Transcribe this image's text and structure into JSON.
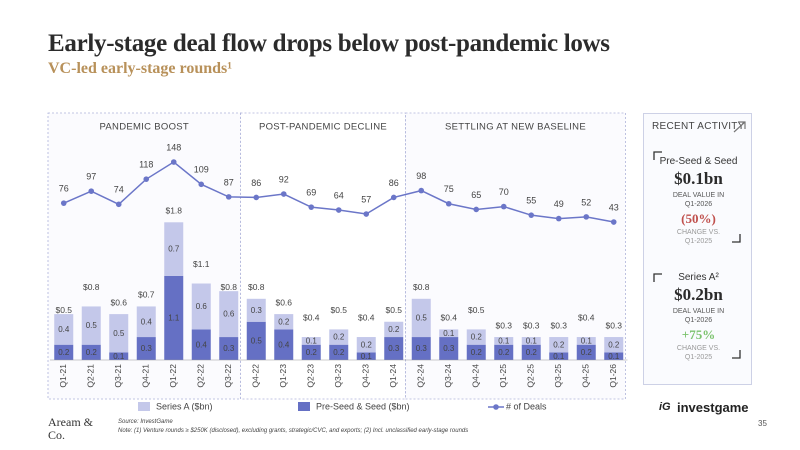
{
  "title": "Early-stage deal flow drops below post-pandemic lows",
  "subtitle": "VC-led early-stage rounds¹",
  "chart_data": {
    "type": "bar-line",
    "categories": [
      "Q1-21",
      "Q2-21",
      "Q3-21",
      "Q4-21",
      "Q1-22",
      "Q2-22",
      "Q3-22",
      "Q4-22",
      "Q1-23",
      "Q2-23",
      "Q3-23",
      "Q4-23",
      "Q1-24",
      "Q2-24",
      "Q3-24",
      "Q4-24",
      "Q1-25",
      "Q2-25",
      "Q3-25",
      "Q4-25",
      "Q1-26"
    ],
    "series": [
      {
        "name": "Series A ($bn)",
        "color": "#c4c8ea",
        "values": [
          0.4,
          0.5,
          0.5,
          0.4,
          0.7,
          0.6,
          0.6,
          0.3,
          0.2,
          0.1,
          0.2,
          0.2,
          0.2,
          0.5,
          0.1,
          0.2,
          0.1,
          0.1,
          0.2,
          0.1,
          0.2
        ]
      },
      {
        "name": "Pre-Seed & Seed ($bn)",
        "color": "#6570c4",
        "values": [
          0.2,
          0.2,
          0.1,
          0.3,
          1.1,
          0.4,
          0.3,
          0.5,
          0.4,
          0.2,
          0.2,
          0.1,
          0.3,
          0.3,
          0.3,
          0.2,
          0.2,
          0.2,
          0.1,
          0.2,
          0.1
        ]
      },
      {
        "name": "# of Deals",
        "color": "#6b76c8",
        "axis": "y2",
        "values": [
          76,
          97,
          74,
          118,
          148,
          109,
          87,
          86,
          92,
          69,
          64,
          57,
          86,
          98,
          75,
          65,
          70,
          55,
          49,
          52,
          43
        ]
      }
    ],
    "totals": [
      0.5,
      0.8,
      0.6,
      0.7,
      1.8,
      1.1,
      0.8,
      0.8,
      0.6,
      0.4,
      0.5,
      0.4,
      0.5,
      0.8,
      0.4,
      0.5,
      0.3,
      0.3,
      0.3,
      0.4,
      0.3
    ],
    "total_labels": [
      "$0.5",
      "$0.8",
      "$0.6",
      "$0.7",
      "$1.8",
      "$1.1",
      "$0.8",
      "$0.8",
      "$0.6",
      "$0.4",
      "$0.5",
      "$0.4",
      "$0.5",
      "$0.8",
      "$0.4",
      "$0.5",
      "$0.3",
      "$0.3",
      "$0.3",
      "$0.4",
      "$0.3"
    ],
    "ylim": [
      0,
      2.0
    ],
    "y2lim": [
      0,
      200
    ],
    "periods": [
      {
        "label": "PANDEMIC BOOST",
        "first": "Q1-21",
        "last": "Q3-22"
      },
      {
        "label": "POST-PANDEMIC DECLINE",
        "first": "Q4-22",
        "last": "Q1-24"
      },
      {
        "label": "SETTLING AT NEW BASELINE",
        "first": "Q2-24",
        "last": "Q1-26"
      }
    ]
  },
  "sidebar": {
    "title": "RECENT ACTIVITY",
    "cards": [
      {
        "name": "Pre-Seed & Seed",
        "value": "$0.1bn",
        "caption": "DEAL VALUE IN Q1-2026",
        "change": "(50%)",
        "change_color": "#c0504d",
        "change_caption": "CHANGE VS. Q1-2025"
      },
      {
        "name": "Series A²",
        "value": "$0.2bn",
        "caption": "DEAL VALUE IN Q1-2026",
        "change": "+75%",
        "change_color": "#7cc36e",
        "change_caption": "CHANGE VS. Q1-2025"
      }
    ]
  },
  "footer": {
    "logo": "Aream & Co.",
    "source": "Source: InvestGame",
    "note": "Note: (1) Venture rounds ≥ $250K (disclosed), excluding grants, strategic/CVC, and exports; (2) Incl. unclassified early-stage rounds",
    "brand_mark": "iG",
    "brand": "investgame",
    "page": "35"
  }
}
